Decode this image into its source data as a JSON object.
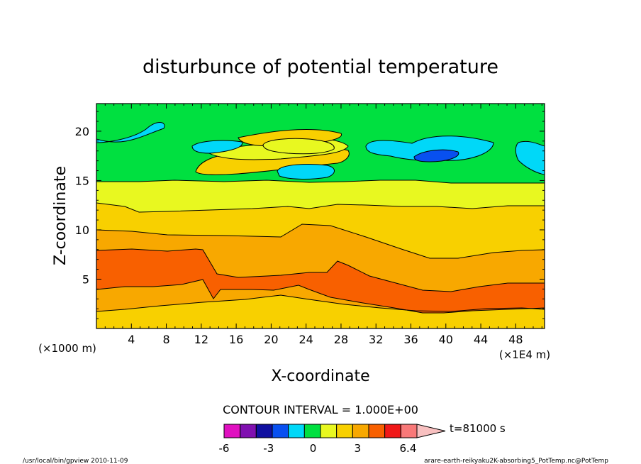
{
  "chart_data": {
    "type": "heatmap",
    "subtype": "filled-contour",
    "title": "disturbunce of potential temperature",
    "xlabel": "X-coordinate",
    "ylabel": "Z-coordinate",
    "x_unit_left": "(×1000 m)",
    "x_unit_right": "(×1E4 m)",
    "x_ticks": [
      4,
      8,
      12,
      16,
      20,
      24,
      28,
      32,
      36,
      40,
      44,
      48
    ],
    "y_ticks": [
      5,
      10,
      15,
      20
    ],
    "xlim": [
      0,
      51.3
    ],
    "ylim": [
      0,
      22.8
    ],
    "contour_interval_text": "CONTOUR INTERVAL = 1.000E+00",
    "time_label": "t=81000 s",
    "colorbar": {
      "tick_labels": [
        "-6",
        "-3",
        "0",
        "3",
        "6.4"
      ],
      "colors": [
        "#e010c0",
        "#8010b0",
        "#1010a0",
        "#0850f0",
        "#00d8f8",
        "#00e040",
        "#e8f820",
        "#f8d000",
        "#f8a800",
        "#f86000",
        "#f01818",
        "#f87878"
      ],
      "extend_color": "#f8c0c0",
      "levels": [
        -6,
        -5,
        -4,
        -3,
        -2,
        -1,
        0,
        1,
        2,
        3,
        4,
        5,
        6,
        6.4
      ]
    },
    "bands_ascending_z": [
      {
        "range": [
          1,
          2
        ],
        "color": "#f8d000"
      },
      {
        "range": [
          2,
          3
        ],
        "color": "#f8a800"
      },
      {
        "range": [
          3,
          4
        ],
        "color": "#f86000"
      },
      {
        "range": [
          2,
          3
        ],
        "color": "#f8a800"
      },
      {
        "range": [
          1,
          2
        ],
        "color": "#f8d000"
      },
      {
        "range": [
          0,
          1
        ],
        "color": "#e8f820"
      },
      {
        "range": [
          -1,
          0
        ],
        "color": "#00e040"
      }
    ]
  },
  "footer": {
    "left": "/usr/local/bin/gpview  2010-11-09",
    "right": "arare-earth-reikyaku2K-absorbing5_PotTemp.nc@PotTemp"
  }
}
